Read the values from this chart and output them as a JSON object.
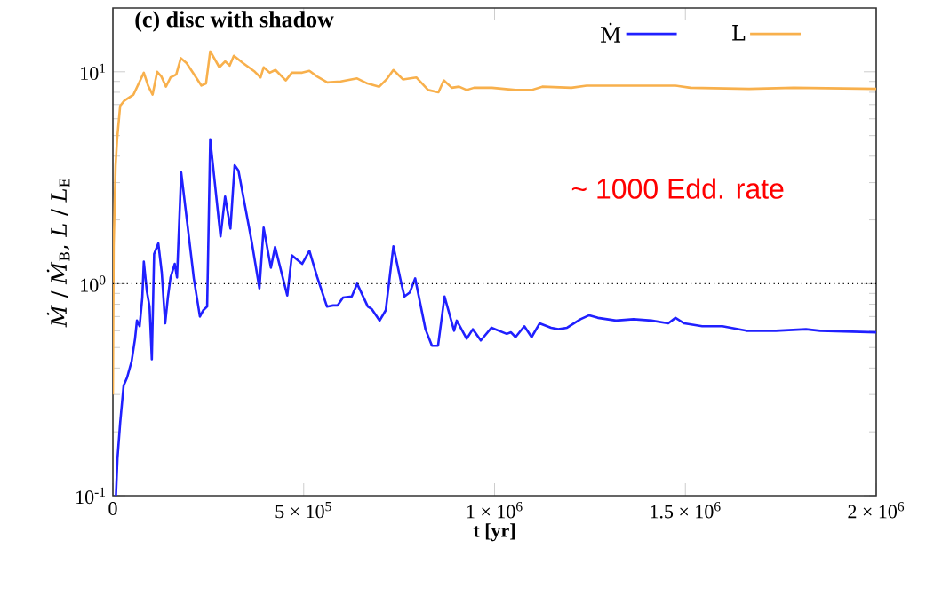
{
  "chart_data": {
    "type": "line",
    "title": "(c) disc with shadow",
    "xlabel": "t [yr]",
    "ylabel": "*Ṁ* / *Ṁ*$_{B}$,   *L* / *L*$_{E}$",
    "log": "y",
    "grid": false,
    "legend": "top right",
    "marker": "none",
    "line_style": "solid",
    "xlim": [
      0,
      2000000
    ],
    "ylim": [
      0.1,
      20
    ],
    "xticks": [
      0,
      {
        "value": 500000,
        "label": "5 × 10$^{5}$"
      },
      {
        "value": 1000000,
        "label": "1 × 10$^{6}$"
      },
      {
        "value": 1500000,
        "label": "1.5 × 10$^{6}$"
      },
      {
        "value": 2000000,
        "label": "2 × 10$^{6}$"
      }
    ],
    "yticks": [
      {
        "value": 0.1,
        "label": "10$^{-1}$"
      },
      {
        "value": 1,
        "label": "10$^{0}$"
      },
      {
        "value": 10,
        "label": "10$^{1}$"
      }
    ],
    "ref_lines": [
      {
        "axis": "y",
        "value": 1,
        "line_style": "dotted",
        "color": "#000000"
      }
    ],
    "annotations": [
      "~ 1000 Edd. rate"
    ],
    "series": [
      {
        "name": "Ṁ",
        "color": "#2020ff",
        "x": [
          8000,
          12000,
          19000,
          28000,
          37000,
          49000,
          58000,
          63000,
          70000,
          77000,
          81000,
          89000,
          96000,
          102000,
          108000,
          119000,
          128000,
          137000,
          144000,
          151000,
          162000,
          168000,
          179000,
          209000,
          212000,
          228000,
          237000,
          247000,
          255000,
          282000,
          294000,
          308000,
          319000,
          329000,
          364000,
          384000,
          395000,
          414000,
          425000,
          457000,
          469000,
          496000,
          515000,
          535000,
          561000,
          577000,
          589000,
          603000,
          626000,
          640000,
          668000,
          678000,
          699000,
          715000,
          735000,
          756000,
          764000,
          778000,
          792000,
          819000,
          836000,
          852000,
          869000,
          894000,
          901000,
          927000,
          943000,
          964000,
          992000,
          1032000,
          1043000,
          1055000,
          1078000,
          1097000,
          1118000,
          1148000,
          1167000,
          1190000,
          1225000,
          1248000,
          1271000,
          1318000,
          1364000,
          1411000,
          1455000,
          1474000,
          1497000,
          1544000,
          1597000,
          1660000,
          1737000,
          1816000,
          1853000,
          2000000
        ],
        "values": [
          0.1,
          0.15,
          0.22,
          0.33,
          0.36,
          0.43,
          0.55,
          0.67,
          0.63,
          0.86,
          1.27,
          0.92,
          0.78,
          0.44,
          1.38,
          1.55,
          1.13,
          0.65,
          0.86,
          1.07,
          1.24,
          1.07,
          3.35,
          1.18,
          1.06,
          0.7,
          0.75,
          0.78,
          4.8,
          1.67,
          2.58,
          1.82,
          3.62,
          3.42,
          1.57,
          0.95,
          1.84,
          1.19,
          1.49,
          0.88,
          1.36,
          1.24,
          1.43,
          1.08,
          0.78,
          0.79,
          0.79,
          0.86,
          0.87,
          1.0,
          0.78,
          0.76,
          0.67,
          0.75,
          1.5,
          1.0,
          0.87,
          0.91,
          1.06,
          0.61,
          0.51,
          0.51,
          0.87,
          0.6,
          0.67,
          0.55,
          0.61,
          0.54,
          0.62,
          0.58,
          0.59,
          0.56,
          0.63,
          0.56,
          0.65,
          0.62,
          0.61,
          0.62,
          0.68,
          0.71,
          0.69,
          0.67,
          0.68,
          0.67,
          0.65,
          0.69,
          0.65,
          0.63,
          0.63,
          0.6,
          0.6,
          0.61,
          0.6,
          0.59
        ]
      },
      {
        "name": "L",
        "color": "#f8b04c",
        "x": [
          0,
          2000,
          7000,
          11000,
          19000,
          30000,
          54000,
          65000,
          81000,
          92000,
          104000,
          116000,
          127000,
          139000,
          151000,
          166000,
          178000,
          193000,
          213000,
          232000,
          244000,
          255000,
          279000,
          294000,
          306000,
          317000,
          341000,
          372000,
          387000,
          395000,
          411000,
          426000,
          453000,
          469000,
          496000,
          515000,
          535000,
          562000,
          597000,
          640000,
          667000,
          698000,
          717000,
          735000,
          760000,
          795000,
          826000,
          853000,
          867000,
          888000,
          907000,
          927000,
          946000,
          993000,
          1055000,
          1097000,
          1125000,
          1201000,
          1241000,
          1474000,
          1513000,
          1667000,
          1784000,
          2000000
        ],
        "values": [
          0.3,
          1.5,
          3.6,
          4.8,
          6.9,
          7.3,
          7.8,
          8.6,
          9.9,
          8.6,
          7.8,
          10.0,
          9.5,
          8.5,
          9.4,
          9.7,
          11.6,
          11.0,
          9.7,
          8.6,
          8.8,
          12.5,
          10.5,
          11.2,
          10.7,
          11.9,
          11.0,
          10.0,
          9.4,
          10.5,
          9.9,
          10.2,
          9.1,
          9.9,
          9.9,
          10.1,
          9.5,
          8.9,
          9.0,
          9.3,
          8.8,
          8.5,
          9.2,
          10.2,
          9.2,
          9.4,
          8.2,
          8.0,
          9.1,
          8.4,
          8.5,
          8.2,
          8.4,
          8.4,
          8.2,
          8.2,
          8.5,
          8.4,
          8.6,
          8.6,
          8.4,
          8.3,
          8.4,
          8.3
        ]
      }
    ]
  }
}
